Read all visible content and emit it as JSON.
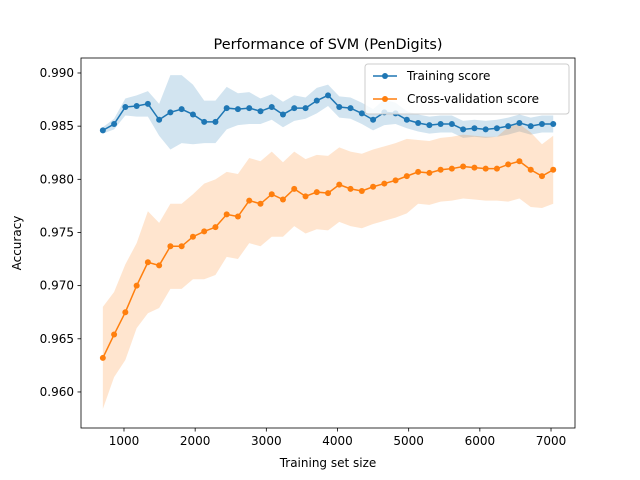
{
  "chart_data": {
    "type": "line",
    "title": "Performance of SVM (PenDigits)",
    "xlabel": "Training set size",
    "ylabel": "Accuracy",
    "x": [
      703,
      861,
      1019,
      1178,
      1336,
      1494,
      1652,
      1810,
      1969,
      2127,
      2285,
      2443,
      2601,
      2760,
      2918,
      3076,
      3234,
      3392,
      3551,
      3709,
      3867,
      4025,
      4183,
      4342,
      4500,
      4658,
      4816,
      4974,
      5133,
      5291,
      5449,
      5607,
      5765,
      5924,
      6082,
      6240,
      6398,
      6556,
      6715,
      6873,
      7031
    ],
    "series": [
      {
        "name": "Training score",
        "color": "#1f77b4",
        "values": [
          0.9846,
          0.9852,
          0.9868,
          0.9869,
          0.9871,
          0.9856,
          0.9863,
          0.9866,
          0.9861,
          0.9854,
          0.9854,
          0.9867,
          0.9866,
          0.9867,
          0.9864,
          0.9868,
          0.9861,
          0.9867,
          0.9867,
          0.9874,
          0.9879,
          0.9868,
          0.9867,
          0.9862,
          0.9856,
          0.9863,
          0.9862,
          0.9856,
          0.9853,
          0.9851,
          0.9852,
          0.9852,
          0.9847,
          0.9848,
          0.9847,
          0.9848,
          0.985,
          0.9853,
          0.985,
          0.9852,
          0.9852
        ],
        "std": [
          0.0003,
          0.0005,
          0.0008,
          0.001,
          0.0012,
          0.0015,
          0.0035,
          0.0032,
          0.0028,
          0.002,
          0.002,
          0.002,
          0.0015,
          0.0015,
          0.0012,
          0.0012,
          0.0012,
          0.0012,
          0.001,
          0.0012,
          0.001,
          0.001,
          0.001,
          0.001,
          0.001,
          0.0012,
          0.001,
          0.0008,
          0.0008,
          0.0008,
          0.0008,
          0.0008,
          0.0008,
          0.0008,
          0.0008,
          0.0008,
          0.0008,
          0.0008,
          0.0008,
          0.0008,
          0.0008
        ]
      },
      {
        "name": "Cross-validation score",
        "color": "#ff7f0e",
        "values": [
          0.9632,
          0.9654,
          0.9675,
          0.97,
          0.9722,
          0.9719,
          0.9737,
          0.9737,
          0.9746,
          0.9751,
          0.9755,
          0.9767,
          0.9765,
          0.978,
          0.9777,
          0.9786,
          0.9781,
          0.9791,
          0.9784,
          0.9788,
          0.9787,
          0.9795,
          0.9791,
          0.9789,
          0.9793,
          0.9796,
          0.9799,
          0.9803,
          0.9807,
          0.9806,
          0.9809,
          0.981,
          0.9812,
          0.9811,
          0.981,
          0.981,
          0.9814,
          0.9817,
          0.9809,
          0.9803,
          0.9809
        ],
        "std": [
          0.0048,
          0.004,
          0.0045,
          0.004,
          0.0048,
          0.004,
          0.004,
          0.004,
          0.004,
          0.0045,
          0.0045,
          0.004,
          0.004,
          0.004,
          0.004,
          0.004,
          0.0035,
          0.0035,
          0.0035,
          0.0035,
          0.0035,
          0.0035,
          0.0035,
          0.0035,
          0.0035,
          0.0035,
          0.0035,
          0.0035,
          0.003,
          0.003,
          0.003,
          0.003,
          0.003,
          0.003,
          0.003,
          0.003,
          0.0035,
          0.0035,
          0.0035,
          0.003,
          0.0032
        ]
      }
    ],
    "xlim": [
      396,
      7337
    ],
    "ylim": [
      0.95661,
      0.99141
    ],
    "xticks": [
      1000,
      2000,
      3000,
      4000,
      5000,
      6000,
      7000
    ],
    "yticks": [
      {
        "value": 0.96,
        "label": "0.960"
      },
      {
        "value": 0.965,
        "label": "0.965"
      },
      {
        "value": 0.97,
        "label": "0.970"
      },
      {
        "value": 0.975,
        "label": "0.975"
      },
      {
        "value": 0.98,
        "label": "0.980"
      },
      {
        "value": 0.985,
        "label": "0.985"
      },
      {
        "value": 0.99,
        "label": "0.990"
      }
    ],
    "legend": "upper right"
  }
}
